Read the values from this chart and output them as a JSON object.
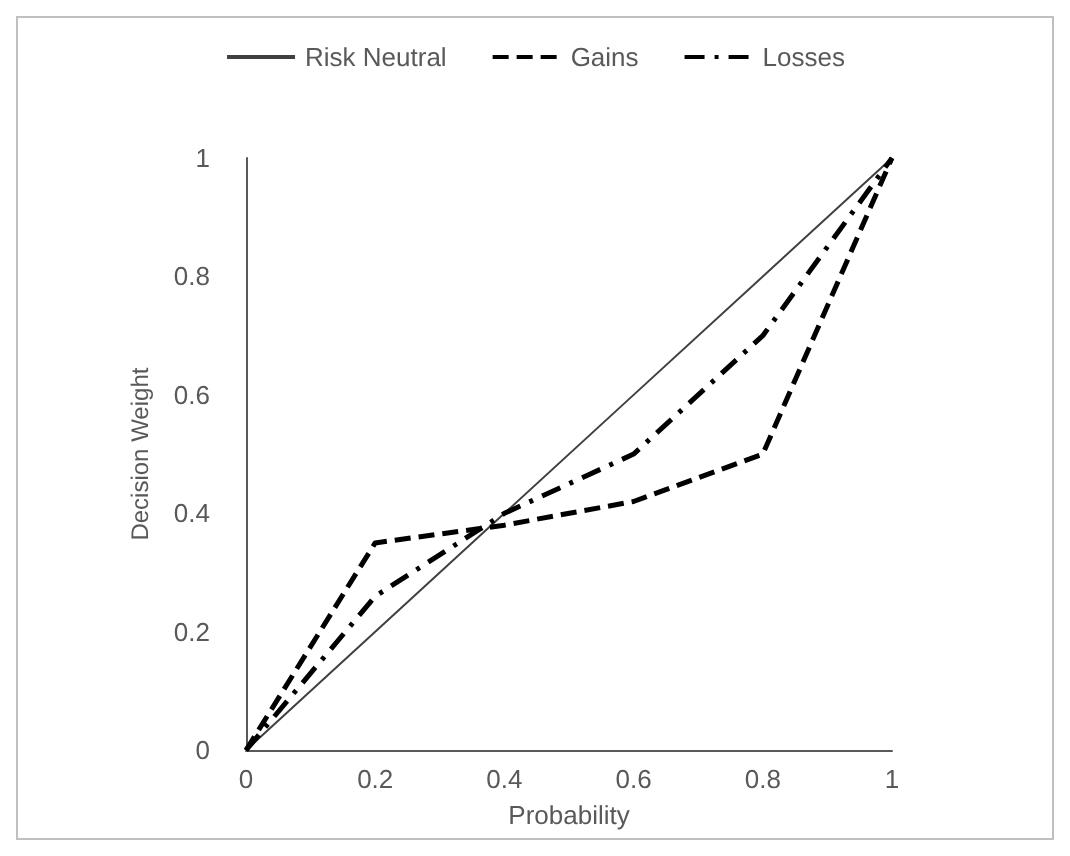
{
  "chart_data": {
    "type": "line",
    "xlabel": "Probability",
    "ylabel": "Decision Weight",
    "x": [
      0,
      0.2,
      0.4,
      0.6,
      0.8,
      1
    ],
    "series": [
      {
        "name": "Risk Neutral",
        "color": "#404040",
        "values": [
          0,
          0.2,
          0.4,
          0.6,
          0.8,
          1
        ],
        "line_style": "solid"
      },
      {
        "name": "Gains",
        "color": "#000000",
        "values": [
          0,
          0.35,
          0.38,
          0.42,
          0.5,
          1
        ],
        "line_style": "dashed"
      },
      {
        "name": "Losses",
        "color": "#000000",
        "values": [
          0,
          0.26,
          0.4,
          0.5,
          0.7,
          1
        ],
        "line_style": "dashdot"
      }
    ],
    "xlim": [
      0,
      1
    ],
    "xticks": [
      0,
      0.2,
      0.4,
      0.6,
      0.8,
      1
    ],
    "ylim": [
      0,
      1
    ],
    "yticks": [
      0,
      0.2,
      0.4,
      0.6,
      0.8,
      1
    ],
    "grid": false,
    "legend": "top",
    "marker": "none"
  }
}
